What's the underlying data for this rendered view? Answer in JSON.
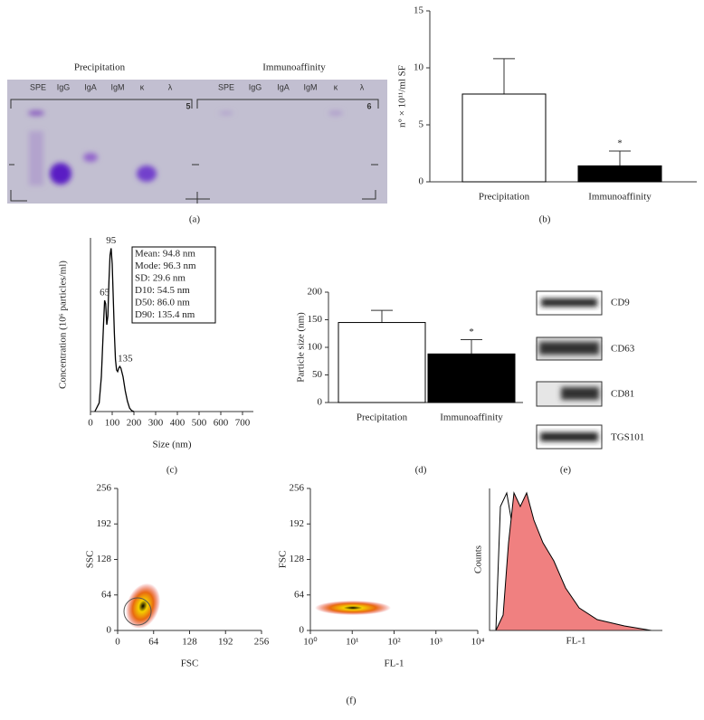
{
  "panel_labels": [
    "(a)",
    "(b)",
    "(c)",
    "(d)",
    "(e)",
    "(f)"
  ],
  "gel": {
    "headers": [
      "Precipitation",
      "Immunoaffinity"
    ],
    "lanes": [
      "SPE",
      "IgG",
      "IgA",
      "IgM",
      "κ",
      "λ",
      "SPE",
      "IgG",
      "IgA",
      "IgM",
      "κ",
      "λ"
    ],
    "lane_numbers": [
      "5",
      "6"
    ]
  },
  "blots": {
    "labels": [
      "CD9",
      "CD63",
      "CD81",
      "TGS101"
    ]
  },
  "chart_data": [
    {
      "type": "bar",
      "ylabel": "n° × 10¹¹/ml SF",
      "categories": [
        "Precipitation",
        "Immunoaffinity"
      ],
      "values": [
        7.7,
        1.4
      ],
      "errors": [
        3.1,
        1.3
      ],
      "colors": [
        "#ffffff",
        "#000000"
      ],
      "annotation": "*",
      "ylim": [
        0,
        15
      ],
      "yticks": [
        0,
        5,
        10,
        15
      ]
    },
    {
      "type": "line",
      "xlabel": "Size (nm)",
      "ylabel": "Concentration (10⁶ particles/ml)",
      "x": [
        20,
        40,
        50,
        60,
        65,
        70,
        75,
        80,
        85,
        90,
        95,
        100,
        105,
        110,
        115,
        120,
        125,
        130,
        135,
        140,
        150,
        160,
        170,
        180,
        190,
        200
      ],
      "values": [
        0,
        5,
        20,
        50,
        64,
        62,
        50,
        55,
        75,
        90,
        94,
        85,
        65,
        45,
        30,
        24,
        23,
        25,
        26,
        25,
        20,
        12,
        6,
        2,
        0.5,
        0
      ],
      "color": "#000000",
      "peaks": [
        95,
        65,
        135
      ],
      "stats": [
        "Mean: 94.8 nm",
        "Mode: 96.3 nm",
        "SD: 29.6 nm",
        "D10: 54.5 nm",
        "D50: 86.0 nm",
        "D90: 135.4 nm"
      ],
      "xlim": [
        0,
        750
      ],
      "xticks": [
        0,
        100,
        200,
        300,
        400,
        500,
        600,
        700
      ],
      "ylim": [
        0,
        100
      ]
    },
    {
      "type": "bar",
      "ylabel": "Particle size (nm)",
      "categories": [
        "Precipitation",
        "Immunoaffinity"
      ],
      "values": [
        145,
        88
      ],
      "errors": [
        22,
        26
      ],
      "colors": [
        "#ffffff",
        "#000000"
      ],
      "annotation": "*",
      "ylim": [
        0,
        200
      ],
      "yticks": [
        0,
        50,
        100,
        150,
        200
      ]
    },
    {
      "type": "scatter",
      "xlabel": "FSC",
      "ylabel": "SSC",
      "xlim": [
        0,
        256
      ],
      "xticks": [
        0,
        64,
        128,
        192,
        256
      ],
      "ylim": [
        0,
        256
      ],
      "yticks": [
        0,
        64,
        128,
        192,
        256
      ]
    },
    {
      "type": "scatter",
      "xlabel": "FL-1",
      "ylabel": "FSC",
      "xlog": true,
      "xlim": [
        1,
        10000
      ],
      "xticks": [
        {
          "value": 1,
          "label": "10⁰"
        },
        {
          "value": 10,
          "label": "10¹"
        },
        {
          "value": 100,
          "label": "10²"
        },
        {
          "value": 1000,
          "label": "10³"
        },
        {
          "value": 10000,
          "label": "10⁴"
        }
      ],
      "ylim": [
        0,
        256
      ],
      "yticks": [
        0,
        64,
        128,
        192,
        256
      ]
    },
    {
      "type": "histogram",
      "xlabel": "FL-1",
      "ylabel": "Counts",
      "color": "#f08080"
    }
  ]
}
